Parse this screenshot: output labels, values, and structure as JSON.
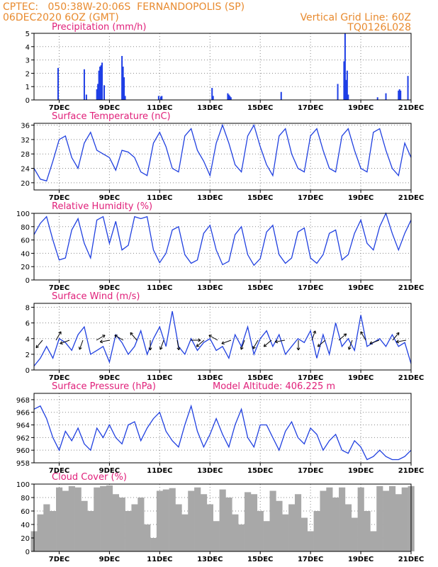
{
  "header": {
    "station_line": "CPTEC:   050:38W-20:06S  FERNANDOPOLIS (SP)",
    "run_line": "06DEC2020 6OZ (GMT)",
    "grid_line": "Vertical Grid Line: 60Z",
    "model_code": "TQ0126L028"
  },
  "colors": {
    "header": "#e88a2e",
    "title": "#e0207a",
    "line": "#2040e0",
    "bar": "#1f3fe6",
    "cloud": "#a8a8a8",
    "arrow": "#000000"
  },
  "chart_data": [
    {
      "type": "bar",
      "title": "Precipitation (mm/h)",
      "x_ticks": [
        "7DEC",
        "9DEC",
        "11DEC",
        "13DEC",
        "15DEC",
        "17DEC",
        "19DEC",
        "21DEC"
      ],
      "x_unit": "hours since 06DEC2020 06Z",
      "xlim": [
        0,
        360
      ],
      "ylim": [
        0,
        5
      ],
      "y_ticks": [
        0,
        1,
        2,
        3,
        4,
        5
      ],
      "grid": true,
      "x": [
        23,
        48,
        50,
        60,
        61,
        62,
        63,
        64,
        65,
        67,
        84,
        85,
        86,
        87,
        119,
        121,
        122,
        170,
        171,
        185,
        186,
        187,
        188,
        236,
        290,
        296,
        297,
        298,
        299,
        300,
        328,
        336,
        348,
        349,
        350,
        357
      ],
      "values": [
        2.4,
        2.3,
        0.4,
        0.8,
        1.2,
        2.2,
        2.5,
        2.6,
        2.8,
        1.1,
        3.3,
        2.5,
        1.7,
        0.3,
        0.3,
        0.25,
        0.3,
        0.9,
        0.3,
        0.5,
        0.4,
        0.3,
        0.2,
        0.6,
        1.2,
        2.9,
        5.0,
        1.5,
        2.2,
        0.4,
        0.2,
        0.5,
        0.7,
        0.8,
        0.7,
        1.8
      ]
    },
    {
      "type": "line",
      "title": "Surface Temperature (nC)",
      "x_ticks": [
        "7DEC",
        "9DEC",
        "11DEC",
        "13DEC",
        "15DEC",
        "17DEC",
        "19DEC",
        "21DEC"
      ],
      "xlim": [
        0,
        360
      ],
      "ylim": [
        18,
        36.5
      ],
      "y_ticks": [
        20,
        24,
        28,
        32,
        36
      ],
      "grid": true,
      "x": [
        0,
        6,
        12,
        18,
        24,
        30,
        36,
        42,
        48,
        54,
        60,
        66,
        72,
        78,
        84,
        90,
        96,
        102,
        108,
        114,
        120,
        126,
        132,
        138,
        144,
        150,
        156,
        162,
        168,
        174,
        180,
        186,
        192,
        198,
        204,
        210,
        216,
        222,
        228,
        234,
        240,
        246,
        252,
        258,
        264,
        270,
        276,
        282,
        288,
        294,
        300,
        306,
        312,
        318,
        324,
        330,
        336,
        342,
        348,
        354,
        360
      ],
      "values": [
        24,
        21,
        20.5,
        26,
        32,
        33,
        27,
        24,
        31,
        34,
        29,
        28,
        27,
        23.5,
        29,
        28.5,
        27,
        23,
        22,
        31,
        34,
        30,
        24,
        23,
        33,
        35,
        29,
        26,
        22,
        31,
        36,
        31,
        25,
        23,
        33,
        36,
        30,
        25,
        22,
        33,
        35,
        28,
        24,
        23,
        33,
        35,
        29,
        24,
        23,
        33,
        35,
        29,
        24,
        23,
        34,
        35,
        29,
        24,
        22,
        31,
        27
      ]
    },
    {
      "type": "line",
      "title": "Relative Humidity (%)",
      "x_ticks": [
        "7DEC",
        "9DEC",
        "11DEC",
        "13DEC",
        "15DEC",
        "17DEC",
        "19DEC",
        "21DEC"
      ],
      "xlim": [
        0,
        360
      ],
      "ylim": [
        0,
        100
      ],
      "y_ticks": [
        0,
        20,
        40,
        60,
        80,
        100
      ],
      "grid": true,
      "x": [
        0,
        6,
        12,
        18,
        24,
        30,
        36,
        42,
        48,
        54,
        60,
        66,
        72,
        78,
        84,
        90,
        96,
        102,
        108,
        114,
        120,
        126,
        132,
        138,
        144,
        150,
        156,
        162,
        168,
        174,
        180,
        186,
        192,
        198,
        204,
        210,
        216,
        222,
        228,
        234,
        240,
        246,
        252,
        258,
        264,
        270,
        276,
        282,
        288,
        294,
        300,
        306,
        312,
        318,
        324,
        330,
        336,
        342,
        348,
        354,
        360
      ],
      "values": [
        68,
        85,
        95,
        60,
        30,
        33,
        75,
        92,
        55,
        33,
        90,
        95,
        55,
        88,
        45,
        52,
        95,
        92,
        95,
        45,
        26,
        40,
        75,
        80,
        38,
        25,
        30,
        70,
        82,
        45,
        23,
        28,
        68,
        80,
        38,
        22,
        32,
        72,
        82,
        38,
        25,
        33,
        72,
        78,
        33,
        25,
        38,
        70,
        75,
        30,
        38,
        70,
        90,
        55,
        45,
        80,
        100,
        70,
        45,
        70,
        90
      ]
    },
    {
      "type": "line",
      "title": "Surface Wind (m/s)",
      "x_ticks": [
        "7DEC",
        "9DEC",
        "11DEC",
        "13DEC",
        "15DEC",
        "17DEC",
        "19DEC",
        "21DEC"
      ],
      "xlim": [
        0,
        360
      ],
      "ylim": [
        0,
        8.5
      ],
      "y_ticks": [
        0,
        2,
        4,
        6,
        8
      ],
      "grid": true,
      "x": [
        0,
        6,
        12,
        18,
        24,
        30,
        36,
        42,
        48,
        54,
        60,
        66,
        72,
        78,
        84,
        90,
        96,
        102,
        108,
        114,
        120,
        126,
        132,
        138,
        144,
        150,
        156,
        162,
        168,
        174,
        180,
        186,
        192,
        198,
        204,
        210,
        216,
        222,
        228,
        234,
        240,
        246,
        252,
        258,
        264,
        270,
        276,
        282,
        288,
        294,
        300,
        306,
        312,
        318,
        324,
        330,
        336,
        342,
        348,
        354,
        360
      ],
      "values": [
        0.5,
        1.5,
        3,
        1.5,
        4,
        3.5,
        2.5,
        4.5,
        5.5,
        2,
        2.5,
        3,
        1,
        4.5,
        3.5,
        2,
        3,
        5,
        2,
        4,
        5.5,
        3,
        7.5,
        3,
        2,
        4,
        2.5,
        3.5,
        4,
        2.5,
        3,
        1.5,
        4.5,
        3,
        5.5,
        2,
        4,
        5,
        3,
        4.5,
        2,
        3,
        4,
        3.5,
        5,
        1.5,
        4.5,
        2,
        6,
        3,
        4,
        2.5,
        7,
        3,
        3.5,
        4,
        3,
        4.5,
        3,
        3.5,
        0.8
      ]
    },
    {
      "type": "line",
      "title": "Surface Pressure (hPa)",
      "annotation": "Model Altitude: 406.225 m",
      "x_ticks": [
        "7DEC",
        "9DEC",
        "11DEC",
        "13DEC",
        "15DEC",
        "17DEC",
        "19DEC",
        "21DEC"
      ],
      "xlim": [
        0,
        360
      ],
      "ylim": [
        958,
        969
      ],
      "y_ticks": [
        958,
        960,
        962,
        964,
        966,
        968
      ],
      "grid": true,
      "x": [
        0,
        6,
        12,
        18,
        24,
        30,
        36,
        42,
        48,
        54,
        60,
        66,
        72,
        78,
        84,
        90,
        96,
        102,
        108,
        114,
        120,
        126,
        132,
        138,
        144,
        150,
        156,
        162,
        168,
        174,
        180,
        186,
        192,
        198,
        204,
        210,
        216,
        222,
        228,
        234,
        240,
        246,
        252,
        258,
        264,
        270,
        276,
        282,
        288,
        294,
        300,
        306,
        312,
        318,
        324,
        330,
        336,
        342,
        348,
        354,
        360
      ],
      "values": [
        966.5,
        967,
        965,
        962,
        960,
        963,
        961.5,
        963.5,
        961,
        960,
        963.5,
        962,
        964,
        962,
        961,
        964,
        964.5,
        961.5,
        963.5,
        965,
        966,
        963,
        961.5,
        960.5,
        964,
        967,
        963,
        960.5,
        962.5,
        965,
        962.5,
        960.5,
        964,
        966.5,
        962,
        960.5,
        964,
        964,
        962,
        960,
        963,
        964.5,
        962,
        961,
        963.5,
        962.5,
        960,
        961.5,
        962.5,
        960,
        959.5,
        961.5,
        960.5,
        958.5,
        959,
        960,
        959,
        958.5,
        958.5,
        959,
        960
      ]
    },
    {
      "type": "bar",
      "title": "Cloud Cover (%)",
      "x_ticks": [
        "7DEC",
        "9DEC",
        "11DEC",
        "13DEC",
        "15DEC",
        "17DEC",
        "19DEC",
        "21DEC"
      ],
      "xlim": [
        0,
        360
      ],
      "ylim": [
        0,
        100
      ],
      "y_ticks": [
        0,
        20,
        40,
        60,
        80,
        100
      ],
      "grid": true,
      "x": [
        0,
        6,
        12,
        18,
        24,
        30,
        36,
        42,
        48,
        54,
        60,
        66,
        72,
        78,
        84,
        90,
        96,
        102,
        108,
        114,
        120,
        126,
        132,
        138,
        144,
        150,
        156,
        162,
        168,
        174,
        180,
        186,
        192,
        198,
        204,
        210,
        216,
        222,
        228,
        234,
        240,
        246,
        252,
        258,
        264,
        270,
        276,
        282,
        288,
        294,
        300,
        306,
        312,
        318,
        324,
        330,
        336,
        342,
        348,
        354,
        360
      ],
      "values": [
        30,
        55,
        70,
        60,
        95,
        90,
        97,
        95,
        75,
        60,
        95,
        97,
        98,
        85,
        80,
        60,
        70,
        80,
        40,
        20,
        90,
        92,
        94,
        70,
        55,
        90,
        95,
        85,
        70,
        45,
        92,
        80,
        55,
        40,
        88,
        85,
        60,
        45,
        90,
        75,
        55,
        70,
        85,
        50,
        30,
        60,
        90,
        95,
        80,
        95,
        70,
        50,
        95,
        60,
        30,
        97,
        90,
        97,
        85,
        95,
        97
      ]
    }
  ]
}
